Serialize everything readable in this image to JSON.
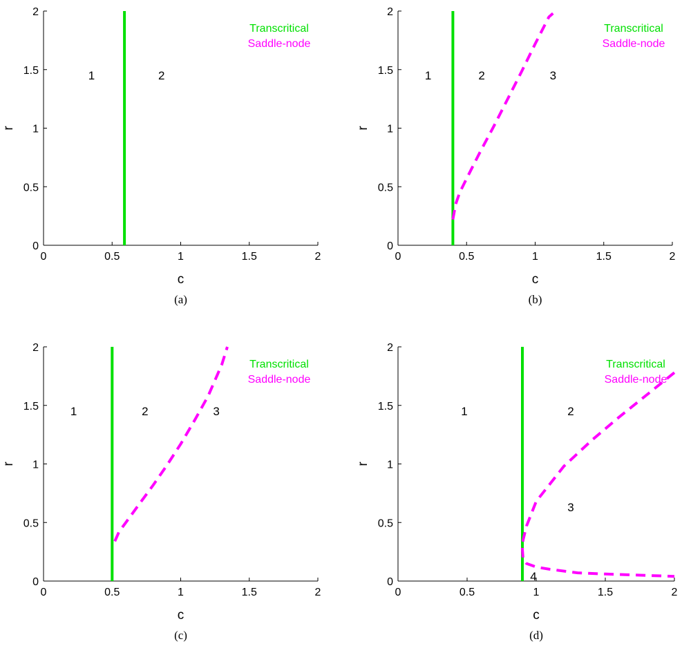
{
  "legend_colors": {
    "transcritical": "#00e000",
    "saddle_node": "#ff00ff"
  },
  "chart_data": [
    {
      "type": "line",
      "caption": "(a)",
      "xlabel": "c",
      "ylabel": "r",
      "xlim": [
        0,
        2
      ],
      "ylim": [
        0,
        2
      ],
      "xticks": [
        "0",
        "0.5",
        "1",
        "1.5",
        "2"
      ],
      "yticks": [
        "0",
        "0.5",
        "1",
        "1.5",
        "2"
      ],
      "legend": [
        "Transcritical",
        "Saddle-node"
      ],
      "legend_position": "top-right",
      "grid": false,
      "series": [
        {
          "name": "Transcritical",
          "style": "solid",
          "color": "#00e000",
          "x": [
            0.59,
            0.59
          ],
          "y": [
            0,
            2
          ]
        }
      ],
      "region_labels": [
        {
          "text": "1",
          "x": 0.35,
          "y": 1.45
        },
        {
          "text": "2",
          "x": 0.86,
          "y": 1.45
        }
      ]
    },
    {
      "type": "line",
      "caption": "(b)",
      "xlabel": "c",
      "ylabel": "r",
      "xlim": [
        0,
        2
      ],
      "ylim": [
        0,
        2
      ],
      "xticks": [
        "0",
        "0.5",
        "1",
        "1.5",
        "2"
      ],
      "yticks": [
        "0",
        "0.5",
        "1",
        "1.5",
        "2"
      ],
      "legend": [
        "Transcritical",
        "Saddle-node"
      ],
      "legend_position": "top-right",
      "grid": false,
      "series": [
        {
          "name": "Transcritical",
          "style": "solid",
          "color": "#00e000",
          "x": [
            0.4,
            0.4
          ],
          "y": [
            0,
            2
          ]
        },
        {
          "name": "Saddle-node",
          "style": "dashed",
          "color": "#ff00ff",
          "x": [
            0.4,
            0.42,
            0.45,
            0.5,
            0.6,
            0.7,
            0.8,
            0.9,
            1.0,
            1.1,
            1.13
          ],
          "y": [
            0.22,
            0.35,
            0.45,
            0.57,
            0.8,
            1.02,
            1.25,
            1.48,
            1.72,
            1.95,
            1.98
          ]
        }
      ],
      "region_labels": [
        {
          "text": "1",
          "x": 0.22,
          "y": 1.45
        },
        {
          "text": "2",
          "x": 0.61,
          "y": 1.45
        },
        {
          "text": "3",
          "x": 1.13,
          "y": 1.45
        }
      ]
    },
    {
      "type": "line",
      "caption": "(c)",
      "xlabel": "c",
      "ylabel": "r",
      "xlim": [
        0,
        2
      ],
      "ylim": [
        0,
        2
      ],
      "xticks": [
        "0",
        "0.5",
        "1",
        "1.5",
        "2"
      ],
      "yticks": [
        "0",
        "0.5",
        "1",
        "1.5",
        "2"
      ],
      "legend": [
        "Transcritical",
        "Saddle-node"
      ],
      "legend_position": "top-right",
      "grid": false,
      "series": [
        {
          "name": "Transcritical",
          "style": "solid",
          "color": "#00e000",
          "x": [
            0.5,
            0.5
          ],
          "y": [
            0,
            2
          ]
        },
        {
          "name": "Saddle-node",
          "style": "dashed",
          "color": "#ff00ff",
          "x": [
            0.52,
            0.55,
            0.6,
            0.7,
            0.8,
            0.9,
            1.0,
            1.1,
            1.2,
            1.3,
            1.34
          ],
          "y": [
            0.34,
            0.42,
            0.5,
            0.66,
            0.82,
            0.99,
            1.17,
            1.37,
            1.58,
            1.85,
            2.0
          ]
        }
      ],
      "region_labels": [
        {
          "text": "1",
          "x": 0.22,
          "y": 1.45
        },
        {
          "text": "2",
          "x": 0.74,
          "y": 1.45
        },
        {
          "text": "3",
          "x": 1.26,
          "y": 1.45
        }
      ]
    },
    {
      "type": "line",
      "caption": "(d)",
      "xlabel": "c",
      "ylabel": "r",
      "xlim": [
        0,
        2
      ],
      "ylim": [
        0,
        2
      ],
      "xticks": [
        "0",
        "0.5",
        "1",
        "1.5",
        "2"
      ],
      "yticks": [
        "0",
        "0.5",
        "1",
        "1.5",
        "2"
      ],
      "legend": [
        "Transcritical",
        "Saddle-node"
      ],
      "legend_position": "top-right",
      "grid": false,
      "series": [
        {
          "name": "Transcritical",
          "style": "solid",
          "color": "#00e000",
          "x": [
            0.9,
            0.9
          ],
          "y": [
            0,
            2
          ]
        },
        {
          "name": "Saddle-node",
          "style": "dashed",
          "color": "#ff00ff",
          "x": [
            2.0,
            1.8,
            1.6,
            1.4,
            1.2,
            1.0,
            0.93,
            0.905,
            0.9,
            0.905,
            0.93,
            1.0,
            1.1,
            1.3,
            1.5,
            1.75,
            2.0
          ],
          "y": [
            1.78,
            1.59,
            1.4,
            1.2,
            0.98,
            0.68,
            0.47,
            0.35,
            0.27,
            0.19,
            0.15,
            0.12,
            0.1,
            0.07,
            0.06,
            0.05,
            0.04
          ]
        }
      ],
      "region_labels": [
        {
          "text": "1",
          "x": 0.48,
          "y": 1.45
        },
        {
          "text": "2",
          "x": 1.25,
          "y": 1.45
        },
        {
          "text": "3",
          "x": 1.25,
          "y": 0.63
        },
        {
          "text": "4",
          "x": 0.98,
          "y": 0.04
        }
      ]
    }
  ]
}
